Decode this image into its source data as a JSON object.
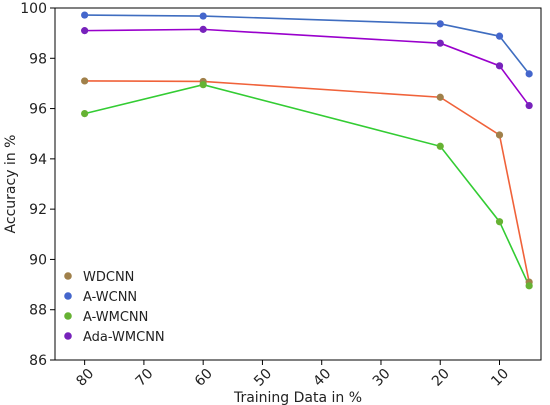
{
  "chart_data": {
    "type": "line",
    "xlabel": "Training Data in %",
    "ylabel": "Accuracy in %",
    "x": [
      80,
      60,
      20,
      10,
      5
    ],
    "x_ticks": [
      80,
      70,
      60,
      50,
      40,
      30,
      20,
      10
    ],
    "xlim": [
      85,
      3
    ],
    "ylim": [
      86,
      100
    ],
    "y_ticks": [
      86,
      88,
      90,
      92,
      94,
      96,
      98,
      100
    ],
    "grid": false,
    "legend_position": "lower-left",
    "series": [
      {
        "name": "WDCNN",
        "color": "#f0623a",
        "marker_color": "#a0804a",
        "values": [
          97.1,
          97.08,
          96.45,
          94.95,
          89.1
        ]
      },
      {
        "name": "A-WCNN",
        "color": "#3f6dc0",
        "marker_color": "#4466cc",
        "values": [
          99.72,
          99.68,
          99.37,
          98.88,
          97.38
        ]
      },
      {
        "name": "A-WMCNN",
        "color": "#33cc33",
        "marker_color": "#66b233",
        "values": [
          95.8,
          96.95,
          94.5,
          91.5,
          88.95
        ]
      },
      {
        "name": "Ada-WMCNN",
        "color": "#9900cc",
        "marker_color": "#7722bb",
        "values": [
          99.1,
          99.15,
          98.6,
          97.7,
          96.12
        ]
      }
    ]
  }
}
